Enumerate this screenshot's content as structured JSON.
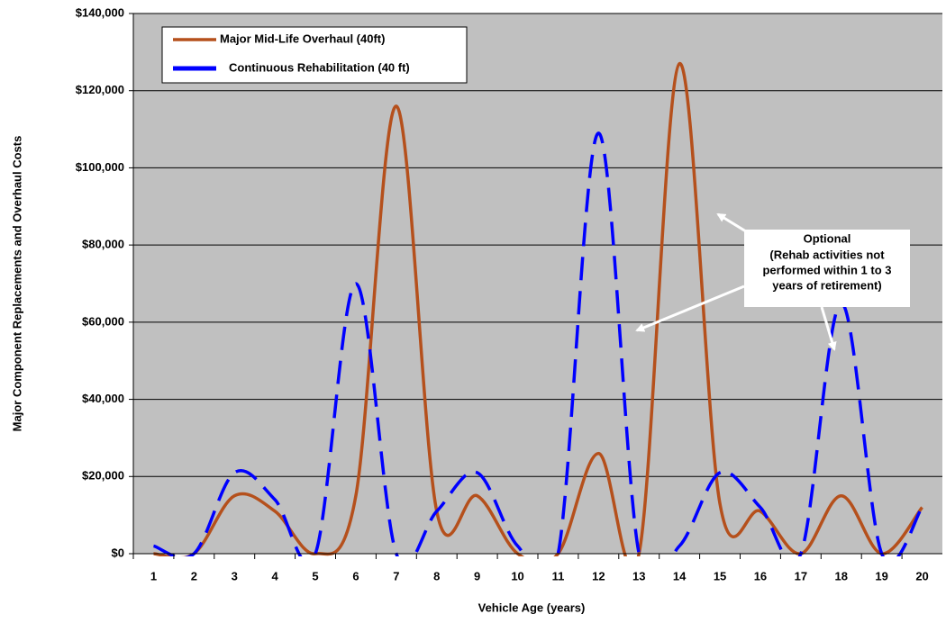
{
  "chart_data": {
    "type": "line",
    "x_label": "Vehicle Age (years)",
    "y_label": "Major Component Replacements and Overhaul Costs",
    "categories": [
      "1",
      "2",
      "3",
      "4",
      "5",
      "6",
      "7",
      "8",
      "9",
      "10",
      "11",
      "12",
      "13",
      "14",
      "15",
      "16",
      "17",
      "18",
      "19",
      "20"
    ],
    "series": [
      {
        "name": "Major Mid-Life Overhaul (40ft)",
        "color": "#b5501c",
        "dash": false,
        "values": [
          0,
          0,
          15000,
          11000,
          0,
          15000,
          116000,
          11000,
          15000,
          0,
          0,
          26000,
          0,
          127000,
          13000,
          11000,
          0,
          15000,
          0,
          12000
        ]
      },
      {
        "name": "Continuous Rehabilitation (40 ft)",
        "color": "#0000ff",
        "dash": true,
        "values": [
          2000,
          0,
          21000,
          14000,
          0,
          70000,
          0,
          11000,
          21000,
          2000,
          0,
          109000,
          0,
          2000,
          21000,
          12000,
          0,
          65000,
          0,
          12000
        ]
      }
    ],
    "ylim": [
      0,
      140000
    ],
    "yticks": [
      {
        "value": 0,
        "label": "$0"
      },
      {
        "value": 20000,
        "label": "$20,000"
      },
      {
        "value": 40000,
        "label": "$40,000"
      },
      {
        "value": 60000,
        "label": "$60,000"
      },
      {
        "value": 80000,
        "label": "$80,000"
      },
      {
        "value": 100000,
        "label": "$100,000"
      },
      {
        "value": 120000,
        "label": "$120,000"
      },
      {
        "value": 140000,
        "label": "$140,000"
      }
    ],
    "grid": true,
    "legend": "top-left",
    "annotation": {
      "title": "Optional",
      "lines": [
        "(Rehab activities not",
        "performed within 1 to 3",
        "years of retirement)"
      ]
    }
  }
}
